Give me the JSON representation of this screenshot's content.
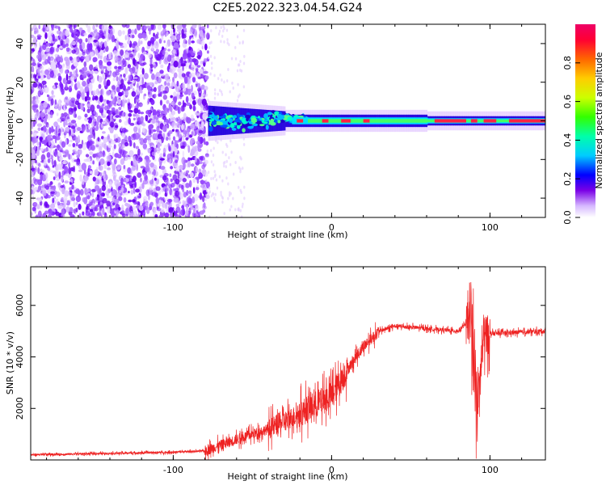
{
  "title": "C2E5.2022.323.04.54.G24",
  "chart_data": [
    {
      "type": "heatmap",
      "xlabel": "Height of straight line (km)",
      "ylabel": "Frequency (Hz)",
      "xlim": [
        -190,
        135
      ],
      "ylim": [
        -50,
        50
      ],
      "xticks": [
        -100,
        0,
        100
      ],
      "yticks": [
        -40,
        -20,
        0,
        20,
        40
      ],
      "colorbar": {
        "label": "Normalized spectral amplitude",
        "range": [
          0,
          1
        ],
        "ticks": [
          "0.0",
          "0.2",
          "0.4",
          "0.6",
          "0.8"
        ],
        "tick_values": [
          0,
          0.2,
          0.4,
          0.6,
          0.8
        ]
      },
      "features": {
        "noise_region_x": [
          -190,
          -78
        ],
        "signal_line_freq_hz": 0,
        "signal_start_x": -78
      }
    },
    {
      "type": "line",
      "xlabel": "Height of straight line (km)",
      "ylabel": "SNR (10 * v/v)",
      "xlim": [
        -190,
        135
      ],
      "ylim": [
        0,
        7500
      ],
      "xticks": [
        -100,
        0,
        100
      ],
      "yticks": [
        2000,
        4000,
        6000
      ],
      "color": "#ee2222",
      "trend": {
        "x": [
          -190,
          -100,
          -80,
          -60,
          -40,
          -20,
          0,
          10,
          20,
          30,
          40,
          60,
          80,
          88,
          92,
          96,
          100,
          135
        ],
        "y": [
          200,
          300,
          350,
          800,
          1200,
          1800,
          2500,
          3500,
          4400,
          5000,
          5200,
          5100,
          5000,
          5500,
          2000,
          4800,
          4900,
          5000
        ]
      }
    }
  ]
}
